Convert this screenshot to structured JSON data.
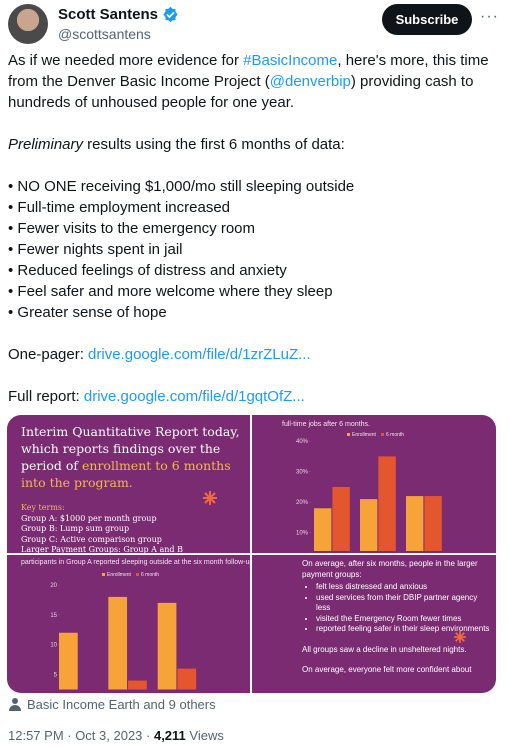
{
  "header": {
    "name": "Scott Santens",
    "handle": "@scottsantens",
    "button": "Subscribe"
  },
  "tweet": {
    "p1": [
      "As if we needed more evidence for ",
      "#BasicIncome",
      ", here's more, this time from the Denver Basic Income Project (",
      "@denverbip",
      ") providing cash to hundreds of unhoused people for one year."
    ],
    "p2": [
      "Preliminary",
      " results using the first 6 months of data:"
    ],
    "bullets": [
      "• NO ONE receiving $1,000/mo still sleeping outside",
      "• Full-time employment increased",
      "• Fewer visits to the emergency room",
      "• Fewer nights spent in jail",
      "• Reduced feelings of distress and anxiety",
      "• Feel safer and more welcome where they sleep",
      "• Greater sense of hope"
    ],
    "onepager": [
      "One-pager: ",
      "drive.google.com/file/d/1zrZLuZ..."
    ],
    "fullreport": [
      "Full report: ",
      "drive.google.com/file/d/1gqtOfZ..."
    ]
  },
  "media": {
    "panel_1": {
      "title": "Interim Quantitative Report today, which reports findings over the period of ",
      "highlight": "enrollment to 6 months into the program.",
      "key_title": "Key terms:",
      "key_lines": [
        "Group A: $1000 per month group",
        "Group B: Lump sum group",
        "Group C: Active comparison group",
        "Larger Payment Groups: Group A and B"
      ]
    },
    "chart_1": {
      "type": "bar",
      "caption": "full-time jobs after 6 months.",
      "series": [
        {
          "name": "Enrollment",
          "color": "#f6a33a",
          "values": [
            18,
            21,
            22
          ]
        },
        {
          "name": "6 month",
          "color": "#e4572e",
          "values": [
            25,
            35,
            22
          ]
        }
      ],
      "ylim": [
        4,
        43
      ],
      "yticks": [
        {
          "value": 10,
          "label": "10%"
        },
        {
          "value": 20,
          "label": "20%"
        },
        {
          "value": 30,
          "label": "30%"
        },
        {
          "value": 40,
          "label": "40%"
        }
      ]
    },
    "chart_2": {
      "type": "bar",
      "caption": "participants in Group A reported sleeping outside at the six month follow-up.",
      "series": [
        {
          "name": "Enrollment",
          "color": "#f6a33a",
          "values": [
            12,
            18,
            17
          ]
        },
        {
          "name": "6 month",
          "color": "#e4572e",
          "values": [
            null,
            4,
            6
          ]
        }
      ],
      "ylim": [
        2.5,
        22.5
      ],
      "yticks": [
        5,
        10,
        15,
        20
      ]
    },
    "panel_4": {
      "intro": "On average, after six months, people in the larger payment groups:",
      "bullets": [
        "felt less distressed and anxious",
        "used services from their DBIP partner agency less",
        "visited the Emergency Room fewer times",
        "reported feeling safer in their sleep environments"
      ],
      "note": "All groups saw a decline in unsheltered nights.",
      "cut": "On average, everyone felt more confident about"
    }
  },
  "footer": {
    "likes": "Basic Income Earth and 9 others",
    "time": "12:57 PM · Oct 3, 2023 · ",
    "views": "4,211",
    "views_word": " Views"
  }
}
